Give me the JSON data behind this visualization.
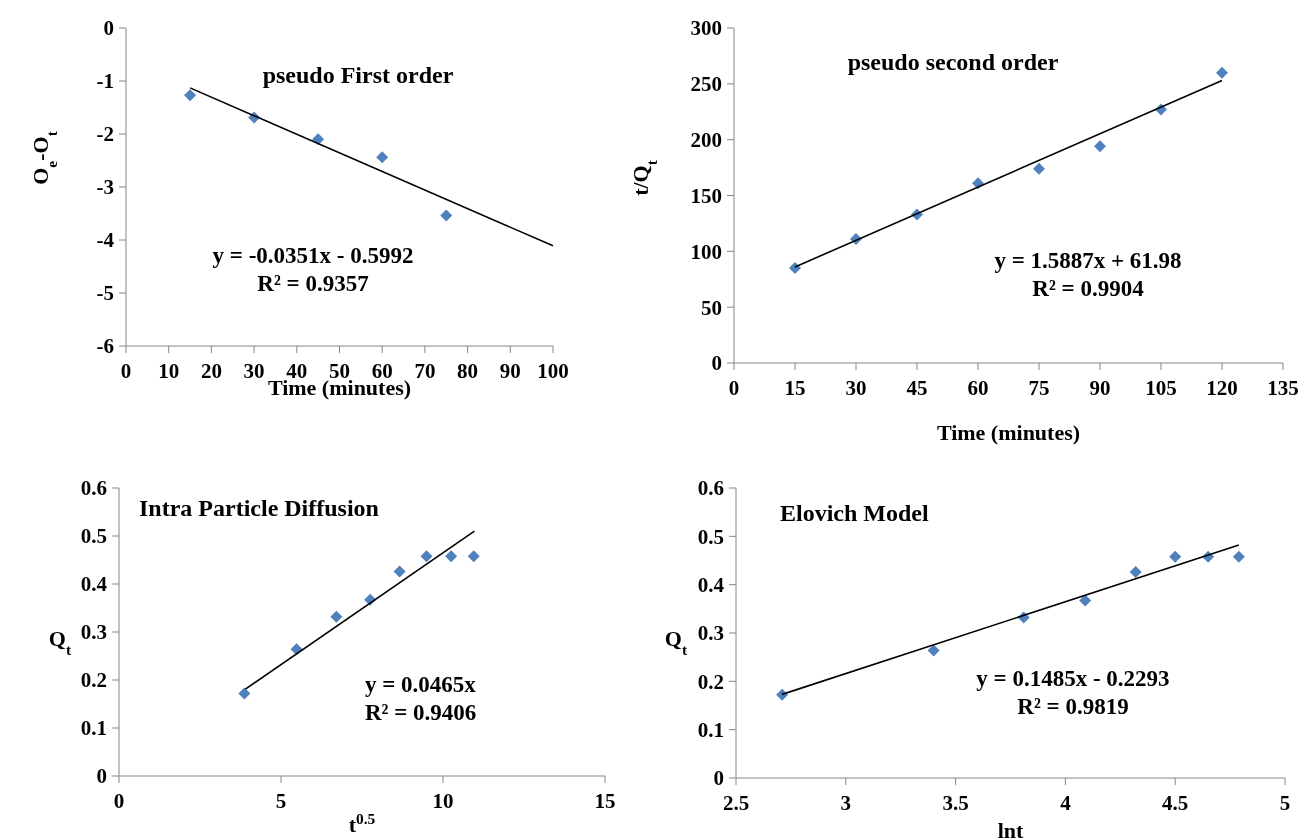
{
  "chart_data": [
    {
      "type": "scatter",
      "title": "pseudo First order",
      "xlabel": "Time (minutes)",
      "ylabel": "O$_{e}$-O$_{t}$",
      "annotations": [
        "y = -0.0351x - 0.5992",
        "R² = 0.9357"
      ],
      "xlim": [
        0,
        100
      ],
      "xticks": [
        0,
        10,
        20,
        30,
        40,
        50,
        60,
        70,
        80,
        90,
        100
      ],
      "ylim": [
        -6,
        0
      ],
      "yticks": [
        -6,
        -5,
        -4,
        -3,
        -2,
        -1,
        0
      ],
      "grid": false,
      "series": [
        {
          "marker": "diamond",
          "color": "#4f81bd",
          "x": [
            15,
            30,
            45,
            60,
            75
          ],
          "values": [
            -1.27,
            -1.69,
            -2.1,
            -2.44,
            -3.54
          ]
        },
        {
          "type": "line",
          "color": "#000000",
          "x": [
            15,
            100
          ],
          "values": [
            -1.13,
            -4.11
          ]
        }
      ]
    },
    {
      "type": "scatter",
      "title": "pseudo second order",
      "xlabel": "Time (minutes)",
      "ylabel": "t/Q$_{t}$",
      "annotations": [
        "y = 1.5887x + 61.98",
        "R² = 0.9904"
      ],
      "xlim": [
        0,
        135
      ],
      "xticks": [
        0,
        15,
        30,
        45,
        60,
        75,
        90,
        105,
        120,
        135
      ],
      "ylim": [
        0,
        300
      ],
      "yticks": [
        0,
        50,
        100,
        150,
        200,
        250,
        300
      ],
      "grid": false,
      "series": [
        {
          "marker": "diamond",
          "color": "#4f81bd",
          "x": [
            15,
            30,
            45,
            60,
            75,
            90,
            105,
            120
          ],
          "values": [
            85,
            111,
            133,
            161,
            174,
            194,
            227,
            260
          ]
        },
        {
          "type": "line",
          "color": "#000000",
          "x": [
            15,
            120
          ],
          "values": [
            86,
            253
          ]
        }
      ]
    },
    {
      "type": "scatter",
      "title": "Intra Particle Diffusion",
      "xlabel": "t$^{0.5}$",
      "ylabel": "Q$_{t}$",
      "annotations": [
        "y = 0.0465x",
        "R² = 0.9406"
      ],
      "xlim": [
        0,
        15
      ],
      "xticks": [
        0,
        5,
        10,
        15
      ],
      "ylim": [
        0,
        0.6
      ],
      "yticks": [
        0,
        0.1,
        0.2,
        0.3,
        0.4,
        0.5,
        0.6
      ],
      "grid": false,
      "series": [
        {
          "marker": "diamond",
          "color": "#4f81bd",
          "x": [
            3.87,
            5.48,
            6.71,
            7.75,
            8.66,
            9.49,
            10.25,
            10.95
          ],
          "values": [
            0.172,
            0.264,
            0.332,
            0.367,
            0.426,
            0.458,
            0.458,
            0.458
          ]
        },
        {
          "type": "line",
          "color": "#000000",
          "x": [
            3.9,
            10.97
          ],
          "values": [
            0.181,
            0.51
          ]
        }
      ]
    },
    {
      "type": "scatter",
      "title": "Elovich Model",
      "xlabel": "lnt",
      "ylabel": "Q$_{t}$",
      "annotations": [
        "y = 0.1485x - 0.2293",
        "R² = 0.9819"
      ],
      "xlim": [
        2.5,
        5
      ],
      "xticks": [
        2.5,
        3,
        3.5,
        4,
        4.5,
        5
      ],
      "ylim": [
        0,
        0.6
      ],
      "yticks": [
        0,
        0.1,
        0.2,
        0.3,
        0.4,
        0.5,
        0.6
      ],
      "grid": false,
      "series": [
        {
          "marker": "diamond",
          "color": "#4f81bd",
          "x": [
            2.71,
            3.4,
            3.81,
            4.09,
            4.32,
            4.5,
            4.65,
            4.79
          ],
          "values": [
            0.172,
            0.264,
            0.332,
            0.367,
            0.426,
            0.458,
            0.458,
            0.458
          ]
        },
        {
          "type": "line",
          "color": "#000000",
          "x": [
            2.71,
            4.79
          ],
          "values": [
            0.173,
            0.482
          ]
        }
      ]
    }
  ]
}
